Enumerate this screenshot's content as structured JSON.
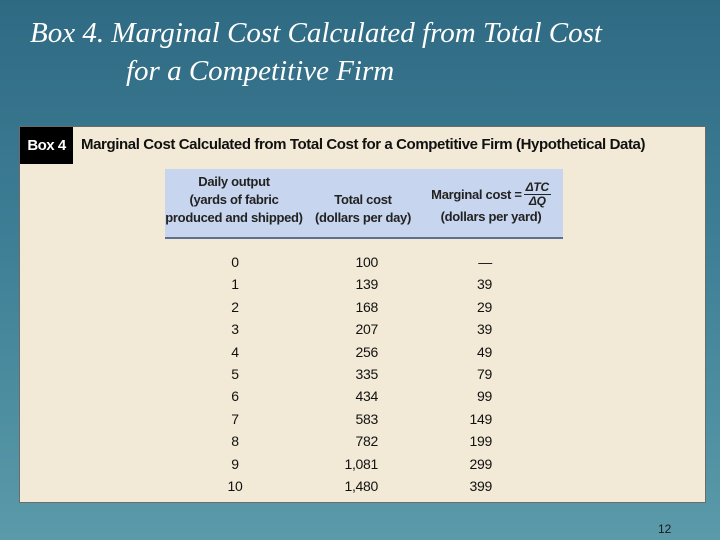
{
  "slide": {
    "title_line1": "Box 4.  Marginal Cost Calculated from Total Cost",
    "title_line2": "for a Competitive Firm",
    "page_number": "12"
  },
  "box": {
    "tag": "Box 4",
    "heading": "Marginal Cost Calculated from Total Cost for a Competitive Firm (Hypothetical Data)"
  },
  "table": {
    "headers": {
      "output_line1": "Daily output",
      "output_line2": "(yards of fabric",
      "output_line3": "produced and shipped)",
      "total_cost_line1": "Total cost",
      "total_cost_line2": "(dollars per day)",
      "marginal_cost_label": "Marginal cost =",
      "marginal_cost_num": "ΔTC",
      "marginal_cost_den": "ΔQ",
      "marginal_cost_unit": "(dollars per yard)"
    },
    "rows": [
      {
        "output": "0",
        "total_cost": "100",
        "marginal_cost": "—"
      },
      {
        "output": "1",
        "total_cost": "139",
        "marginal_cost": "39"
      },
      {
        "output": "2",
        "total_cost": "168",
        "marginal_cost": "29"
      },
      {
        "output": "3",
        "total_cost": "207",
        "marginal_cost": "39"
      },
      {
        "output": "4",
        "total_cost": "256",
        "marginal_cost": "49"
      },
      {
        "output": "5",
        "total_cost": "335",
        "marginal_cost": "79"
      },
      {
        "output": "6",
        "total_cost": "434",
        "marginal_cost": "99"
      },
      {
        "output": "7",
        "total_cost": "583",
        "marginal_cost": "149"
      },
      {
        "output": "8",
        "total_cost": "782",
        "marginal_cost": "199"
      },
      {
        "output": "9",
        "total_cost": "1,081",
        "marginal_cost": "299"
      },
      {
        "output": "10",
        "total_cost": "1,480",
        "marginal_cost": "399"
      }
    ]
  }
}
